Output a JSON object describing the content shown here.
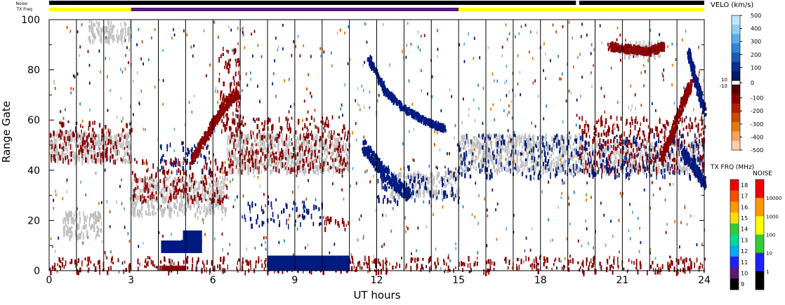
{
  "chart_data": {
    "type": "heatmap",
    "title": "",
    "xlabel": "UT hours",
    "ylabel": "Range Gate",
    "xlim": [
      0,
      24
    ],
    "ylim": [
      0,
      100
    ],
    "x_ticks": [
      "0",
      "3",
      "6",
      "9",
      "12",
      "15",
      "18",
      "21",
      "24"
    ],
    "y_ticks": [
      "0",
      "20",
      "40",
      "60",
      "80",
      "100"
    ],
    "top_bar_labels": {
      "noise": "Noise",
      "txfreq": "TX Freq"
    },
    "noise_bar_gap_hours": [
      19.3,
      19.42
    ],
    "txfreq_segments": [
      {
        "start": 0,
        "end": 3,
        "color": "#ffff00"
      },
      {
        "start": 3,
        "end": 15,
        "color": "#5a1a7a"
      },
      {
        "start": 15,
        "end": 24,
        "color": "#ffff00"
      }
    ],
    "velocity_colorbar": {
      "title": "VELO (km/s)",
      "tick_labels": [
        "500",
        "400",
        "300",
        "200",
        "100",
        "0",
        "-100",
        "-200",
        "-300",
        "-400",
        "-500"
      ],
      "extra_labels": [
        "10",
        "-10"
      ],
      "colors_top_to_bottom": [
        "#bfe6ff",
        "#8fcff2",
        "#5aaee8",
        "#2f86d6",
        "#1c5cb8",
        "#0a2f8e",
        "#001a66",
        "#5a0000",
        "#8b0000",
        "#b02000",
        "#cc4a00",
        "#e07a10",
        "#f5a060",
        "#fcd0a8"
      ]
    },
    "txfreq_colorbar": {
      "title": "TX FRQ (MHz)",
      "tick_labels": [
        "18",
        "17",
        "16",
        "15",
        "14",
        "13",
        "12",
        "11",
        "10",
        "9"
      ],
      "colors_top_to_bottom": [
        "#ee0000",
        "#ff4a00",
        "#ff9900",
        "#ffdd00",
        "#33cc33",
        "#00dd99",
        "#00aaff",
        "#2020ff",
        "#5a1a7a",
        "#000000"
      ]
    },
    "noise_colorbar": {
      "title": "NOISE",
      "tick_labels": [
        "10000",
        "1000",
        "100",
        "10",
        "1"
      ],
      "colors_top_to_bottom": [
        "#ee0000",
        "#ff9900",
        "#ffff00",
        "#33cc33",
        "#2020ff",
        "#000000"
      ]
    },
    "scatter_bands": [
      {
        "name": "ground",
        "color": "#c0c0c0",
        "t0": 0,
        "t1": 3,
        "g0": 44,
        "g1": 56
      },
      {
        "name": "ground",
        "color": "#c0c0c0",
        "t0": 3,
        "t1": 6.5,
        "g0": 23,
        "g1": 38
      },
      {
        "name": "ground",
        "color": "#c0c0c0",
        "t0": 6.5,
        "t1": 11,
        "g0": 40,
        "g1": 55
      },
      {
        "name": "ground",
        "color": "#c0c0c0",
        "t0": 12.5,
        "t1": 15,
        "g0": 30,
        "g1": 40
      },
      {
        "name": "ground",
        "color": "#c0c0c0",
        "t0": 15,
        "t1": 19.4,
        "g0": 40,
        "g1": 55
      },
      {
        "name": "ground",
        "color": "#c0c0c0",
        "t0": 19.4,
        "t1": 24,
        "g0": 40,
        "g1": 52
      },
      {
        "name": "ground",
        "color": "#c0c0c0",
        "t0": 0.5,
        "t1": 1.9,
        "g0": 14,
        "g1": 24
      },
      {
        "name": "ground",
        "color": "#c0c0c0",
        "t0": 1.4,
        "t1": 3,
        "g0": 92,
        "g1": 100
      },
      {
        "name": "ground",
        "color": "#c0c0c0",
        "t0": 21,
        "t1": 22.4,
        "g0": 86,
        "g1": 92
      },
      {
        "name": "negative",
        "color": "#8b0000",
        "t0": 0,
        "t1": 3,
        "g0": 44,
        "g1": 60
      },
      {
        "name": "negative",
        "color": "#8b0000",
        "t0": 3,
        "t1": 6.5,
        "g0": 28,
        "g1": 45
      },
      {
        "name": "negative",
        "color": "#8b0000",
        "t0": 6.5,
        "t1": 11,
        "g0": 40,
        "g1": 62
      },
      {
        "name": "negative",
        "color": "#8b0000",
        "t0": 6.2,
        "t1": 7.0,
        "g0": 55,
        "g1": 90
      },
      {
        "name": "negative",
        "color": "#8b0000",
        "t0": 19.4,
        "t1": 24,
        "g0": 40,
        "g1": 62
      },
      {
        "name": "negative",
        "color": "#8b0000",
        "t0": 0,
        "t1": 24,
        "g0": 0,
        "g1": 6
      },
      {
        "name": "negative",
        "color": "#8b0000",
        "t0": 10,
        "t1": 11,
        "g0": 16,
        "g1": 22
      },
      {
        "name": "positive",
        "color": "#001a80",
        "t0": 15,
        "t1": 24,
        "g0": 38,
        "g1": 55
      },
      {
        "name": "positive",
        "color": "#001a80",
        "t0": 12,
        "t1": 15,
        "g0": 28,
        "g1": 42
      },
      {
        "name": "positive",
        "color": "#001a80",
        "t0": 7,
        "t1": 10,
        "g0": 18,
        "g1": 28
      },
      {
        "name": "positive",
        "color": "#001a80",
        "t0": 4,
        "t1": 6,
        "g0": 40,
        "g1": 52
      }
    ],
    "solid_patches": [
      {
        "color": "#001a80",
        "t0": 4.1,
        "t1": 5.6,
        "g0": 7,
        "g1": 12
      },
      {
        "color": "#001a80",
        "t0": 4.9,
        "t1": 5.6,
        "g0": 11,
        "g1": 16
      },
      {
        "color": "#8b0000",
        "t0": 4.1,
        "t1": 5.0,
        "g0": 0,
        "g1": 2
      },
      {
        "color": "#001a80",
        "t0": 8.0,
        "t1": 11.0,
        "g0": 0,
        "g1": 6
      }
    ],
    "tracks": [
      {
        "color": "#001a80",
        "points": [
          [
            11.7,
            85
          ],
          [
            12.3,
            72
          ],
          [
            13.0,
            65
          ],
          [
            13.8,
            60
          ],
          [
            14.5,
            57
          ]
        ],
        "width": 1.2
      },
      {
        "color": "#001a80",
        "points": [
          [
            11.5,
            50
          ],
          [
            12.0,
            43
          ],
          [
            12.6,
            36
          ],
          [
            13.2,
            30
          ]
        ],
        "width": 2.6
      },
      {
        "color": "#001a80",
        "points": [
          [
            23.4,
            88
          ],
          [
            23.7,
            75
          ],
          [
            24.0,
            64
          ]
        ],
        "width": 2.0
      },
      {
        "color": "#001a80",
        "points": [
          [
            23.2,
            48
          ],
          [
            23.6,
            42
          ],
          [
            24.0,
            35
          ]
        ],
        "width": 2.0
      },
      {
        "color": "#8b0000",
        "points": [
          [
            5.2,
            45
          ],
          [
            5.8,
            55
          ],
          [
            6.3,
            65
          ],
          [
            6.9,
            72
          ]
        ],
        "width": 2.0
      },
      {
        "color": "#8b0000",
        "points": [
          [
            22.4,
            45
          ],
          [
            22.8,
            55
          ],
          [
            23.2,
            68
          ],
          [
            23.5,
            75
          ]
        ],
        "width": 2.0
      },
      {
        "color": "#8b0000",
        "points": [
          [
            20.5,
            90
          ],
          [
            21.2,
            89
          ],
          [
            22.0,
            88
          ],
          [
            22.5,
            90
          ]
        ],
        "width": 1.5
      }
    ]
  }
}
